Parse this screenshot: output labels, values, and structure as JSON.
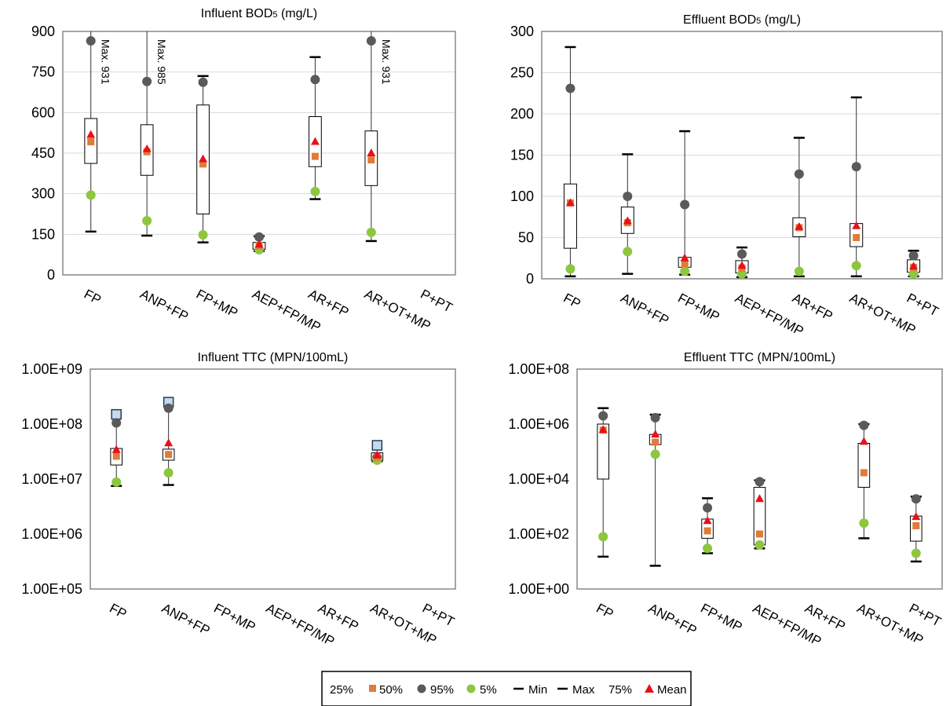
{
  "chart_data": [
    {
      "type": "box",
      "title_main": "Influent BOD",
      "title_sub": "5",
      "title_tail": " (mg/L)",
      "scale": "linear",
      "ylim": [
        0,
        900
      ],
      "yticks": [
        "0",
        "150",
        "300",
        "450",
        "600",
        "750",
        "900"
      ],
      "ytick_values": [
        0,
        150,
        300,
        450,
        600,
        750,
        900
      ],
      "grid": true,
      "categories": [
        "FP",
        "ANP+FP",
        "FP+MP",
        "AEP+FP/MP",
        "AR+FP",
        "AR+OT+MP",
        "P+PT"
      ],
      "boxes": [
        {
          "min": 160,
          "p25": 412,
          "p50": 492,
          "p75": 578,
          "max": 931,
          "p5": 295,
          "p95": 865,
          "mean": 518,
          "annotation": "Max. 931"
        },
        {
          "min": 145,
          "p25": 368,
          "p50": 455,
          "p75": 555,
          "max": 985,
          "p5": 200,
          "p95": 715,
          "mean": 465,
          "annotation": "Max. 985"
        },
        {
          "min": 120,
          "p25": 225,
          "p50": 410,
          "p75": 628,
          "max": 735,
          "p5": 148,
          "p95": 712,
          "mean": 428
        },
        {
          "min": 88,
          "p25": 95,
          "p50": 108,
          "p75": 120,
          "max": 143,
          "p5": 93,
          "p95": 140,
          "mean": 112
        },
        {
          "min": 280,
          "p25": 400,
          "p50": 438,
          "p75": 585,
          "max": 805,
          "p5": 308,
          "p95": 722,
          "mean": 492
        },
        {
          "min": 125,
          "p25": 330,
          "p50": 425,
          "p75": 532,
          "max": 931,
          "p5": 157,
          "p95": 865,
          "mean": 450,
          "annotation": "Max. 931"
        },
        null
      ]
    },
    {
      "type": "box",
      "title_main": "Effluent BOD",
      "title_sub": "5",
      "title_tail": " (mg/L)",
      "scale": "linear",
      "ylim": [
        0,
        300
      ],
      "yticks": [
        "0",
        "50",
        "100",
        "150",
        "200",
        "250",
        "300"
      ],
      "ytick_values": [
        0,
        50,
        100,
        150,
        200,
        250,
        300
      ],
      "grid": true,
      "categories": [
        "FP",
        "ANP+FP",
        "FP+MP",
        "AEP+FP/MP",
        "AR+FP",
        "AR+OT+MP",
        "P+PT"
      ],
      "boxes": [
        {
          "min": 3,
          "p25": 37,
          "p50": 92,
          "p75": 115,
          "max": 281,
          "p5": 12,
          "p95": 231,
          "mean": 92
        },
        {
          "min": 6,
          "p25": 55,
          "p50": 68,
          "p75": 87,
          "max": 151,
          "p5": 33,
          "p95": 100,
          "mean": 70
        },
        {
          "min": 5,
          "p25": 14,
          "p50": 18,
          "p75": 26,
          "max": 179,
          "p5": 9,
          "p95": 90,
          "mean": 25
        },
        {
          "min": 2,
          "p25": 7,
          "p50": 13,
          "p75": 22,
          "max": 38,
          "p5": 6,
          "p95": 30,
          "mean": 16
        },
        {
          "min": 3,
          "p25": 51,
          "p50": 62,
          "p75": 74,
          "max": 171,
          "p5": 9,
          "p95": 127,
          "mean": 63
        },
        {
          "min": 3,
          "p25": 39,
          "p50": 50,
          "p75": 67,
          "max": 220,
          "p5": 16,
          "p95": 136,
          "mean": 64
        },
        {
          "min": 3,
          "p25": 8,
          "p50": 14,
          "p75": 23,
          "max": 34,
          "p5": 6,
          "p95": 28,
          "mean": 15
        }
      ]
    },
    {
      "type": "box",
      "title_main": "Influent TTC (MPN/100mL)",
      "title_sub": "",
      "title_tail": "",
      "scale": "log",
      "ylim": [
        100000,
        1000000000
      ],
      "yticks": [
        "1.00E+05",
        "1.00E+06",
        "1.00E+07",
        "1.00E+08",
        "1.00E+09"
      ],
      "ytick_values": [
        100000,
        1000000,
        10000000,
        100000000,
        1000000000
      ],
      "grid": false,
      "categories": [
        "FP",
        "ANP+FP",
        "FP+MP",
        "AEP+FP/MP",
        "AR+FP",
        "AR+OT+MP",
        "P+PT"
      ],
      "boxes": [
        {
          "min": 7500000,
          "p25": 18000000,
          "p50": 26000000,
          "p75": 36000000,
          "max": 150000000,
          "p5": 8800000,
          "p95": 105000000,
          "mean": 34000000
        },
        {
          "min": 7800000,
          "p25": 22000000,
          "p50": 28000000,
          "p75": 35000000,
          "max": 250000000,
          "p5": 13000000,
          "p95": 195000000,
          "mean": 45000000
        },
        null,
        null,
        null,
        {
          "min": 21000000,
          "p25": 22000000,
          "p50": 25000000,
          "p75": 30000000,
          "max": 41000000,
          "p5": 22000000,
          "p95": 25000000,
          "mean": 27000000
        },
        null
      ]
    },
    {
      "type": "box",
      "title_main": "Effluent TTC (MPN/100mL)",
      "title_sub": "",
      "title_tail": "",
      "scale": "log",
      "ylim": [
        1,
        100000000
      ],
      "yticks": [
        "1.00E+00",
        "1.00E+02",
        "1.00E+04",
        "1.00E+06",
        "1.00E+08"
      ],
      "ytick_values": [
        1,
        100,
        10000,
        1000000,
        100000000
      ],
      "grid": false,
      "categories": [
        "FP",
        "ANP+FP",
        "FP+MP",
        "AEP+FP/MP",
        "AR+FP",
        "AR+OT+MP",
        "P+PT"
      ],
      "boxes": [
        {
          "min": 15,
          "p25": 10000,
          "p50": 600000,
          "p75": 1000000,
          "max": 3800000,
          "p5": 80,
          "p95": 2000000,
          "mean": 620000
        },
        {
          "min": 7,
          "p25": 180000,
          "p50": 220000,
          "p75": 420000,
          "max": 2200000,
          "p5": 80000,
          "p95": 1700000,
          "mean": 420000
        },
        {
          "min": 20,
          "p25": 70,
          "p50": 130,
          "p75": 350,
          "max": 2000,
          "p5": 30,
          "p95": 900,
          "mean": 300
        },
        {
          "min": 30,
          "p25": 40,
          "p50": 100,
          "p75": 5000,
          "max": 9000,
          "p5": 40,
          "p95": 8000,
          "mean": 1900
        },
        null,
        {
          "min": 70,
          "p25": 5000,
          "p50": 17000,
          "p75": 200000,
          "max": 1000000,
          "p5": 250,
          "p95": 900000,
          "mean": 230000
        },
        {
          "min": 10,
          "p25": 55,
          "p50": 200,
          "p75": 450,
          "max": 2300,
          "p5": 20,
          "p95": 1900,
          "mean": 420
        }
      ]
    }
  ],
  "legend": {
    "p25": "25%",
    "p50": "50%",
    "p95": "95%",
    "p5": "5%",
    "min": "Min",
    "max": "Max",
    "p75": "75%",
    "mean": "Mean"
  },
  "colors": {
    "median": "#E07B39",
    "p95": "#5A5A5A",
    "p5": "#8DC63F",
    "mean": "#E8101A",
    "whisker_cap": "#000000",
    "box_border": "#000000",
    "max_square_fill": "#C9D9EC",
    "max_square_stroke": "#1F3B5A",
    "grid": "#D9D9D9",
    "frame": "#888888"
  }
}
